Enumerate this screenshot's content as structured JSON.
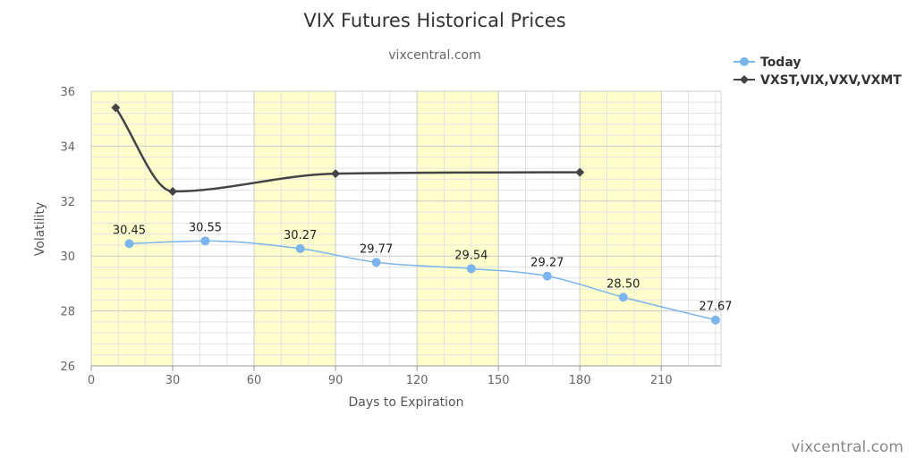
{
  "chart_data": {
    "type": "line",
    "title": "VIX Futures Historical Prices",
    "subtitle": "vixcentral.com",
    "xlabel": "Days to Expiration",
    "ylabel": "Volatility",
    "xlim": [
      0,
      232
    ],
    "ylim": [
      26,
      36
    ],
    "x_ticks": [
      "0",
      "30",
      "60",
      "90",
      "120",
      "150",
      "180",
      "210"
    ],
    "y_ticks": [
      "26",
      "28",
      "30",
      "32",
      "34",
      "36"
    ],
    "highlight_bands": [
      [
        0,
        30
      ],
      [
        60,
        90
      ],
      [
        120,
        150
      ],
      [
        180,
        210
      ]
    ],
    "band_color": "#ffffcc",
    "grid": true,
    "legend_position": "top-right",
    "series": [
      {
        "name": "Today",
        "color": "#7cb5ec",
        "marker": "circle",
        "x": [
          14,
          42,
          77,
          105,
          140,
          168,
          196,
          230
        ],
        "values": [
          30.45,
          30.55,
          30.27,
          29.77,
          29.54,
          29.27,
          28.5,
          27.67
        ],
        "labels": [
          "30.45",
          "30.55",
          "30.27",
          "29.77",
          "29.54",
          "29.27",
          "28.50",
          "27.67"
        ]
      },
      {
        "name": "VXST,VIX,VXV,VXMT",
        "color": "#434348",
        "marker": "diamond",
        "x": [
          9,
          30,
          90,
          180
        ],
        "values": [
          35.4,
          32.35,
          33.0,
          33.05
        ]
      }
    ],
    "credit": "vixcentral.com"
  }
}
